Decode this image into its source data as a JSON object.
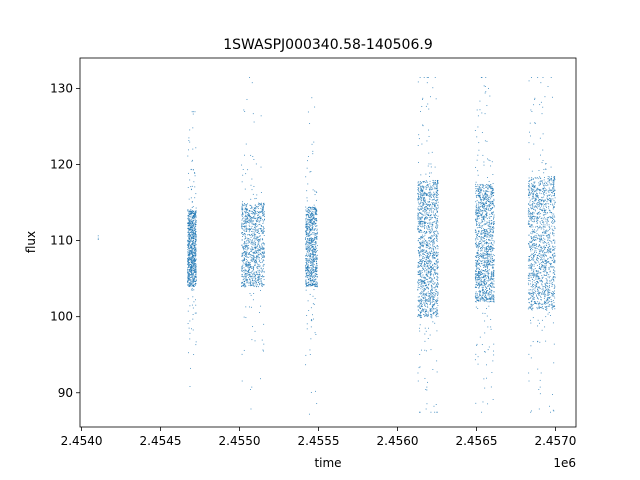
{
  "chart_data": {
    "type": "scatter",
    "title": "1SWASPJ000340.58-140506.9",
    "xlabel": "time",
    "ylabel": "flux",
    "x_offset_label": "1e6",
    "x_scale": 1000000,
    "xlim": [
      2453990,
      2457130
    ],
    "ylim": [
      85.5,
      134.0
    ],
    "x_ticks": [
      2454000,
      2454500,
      2455000,
      2455500,
      2456000,
      2456500,
      2457000
    ],
    "x_tick_labels": [
      "2.4540",
      "2.4545",
      "2.4550",
      "2.4555",
      "2.4560",
      "2.4565",
      "2.4570"
    ],
    "y_ticks": [
      90,
      100,
      110,
      120,
      130
    ],
    "y_tick_labels": [
      "90",
      "100",
      "110",
      "120",
      "130"
    ],
    "grid": false,
    "marker_color": "#1f77b4",
    "observing_seasons": [
      {
        "x_start": 2454102,
        "x_end": 2454103,
        "core_low": 110.2,
        "core_high": 111.0,
        "min": 110.0,
        "max": 111.2,
        "density": 3
      },
      {
        "x_start": 2454668,
        "x_end": 2454723,
        "core_low": 104.0,
        "core_high": 114.0,
        "min": 88.5,
        "max": 127.0,
        "density": 900
      },
      {
        "x_start": 2455010,
        "x_end": 2455155,
        "core_low": 104.0,
        "core_high": 115.0,
        "min": 87.5,
        "max": 131.5,
        "density": 1000
      },
      {
        "x_start": 2455415,
        "x_end": 2455490,
        "core_low": 104.0,
        "core_high": 114.5,
        "min": 87.0,
        "max": 130.0,
        "density": 800
      },
      {
        "x_start": 2456125,
        "x_end": 2456255,
        "core_low": 100.0,
        "core_high": 118.0,
        "min": 87.5,
        "max": 131.5,
        "density": 1400
      },
      {
        "x_start": 2456490,
        "x_end": 2456610,
        "core_low": 102.0,
        "core_high": 117.5,
        "min": 87.5,
        "max": 131.5,
        "density": 1300
      },
      {
        "x_start": 2456825,
        "x_end": 2456995,
        "core_low": 101.0,
        "core_high": 118.5,
        "min": 87.5,
        "max": 131.5,
        "density": 1400
      }
    ]
  }
}
